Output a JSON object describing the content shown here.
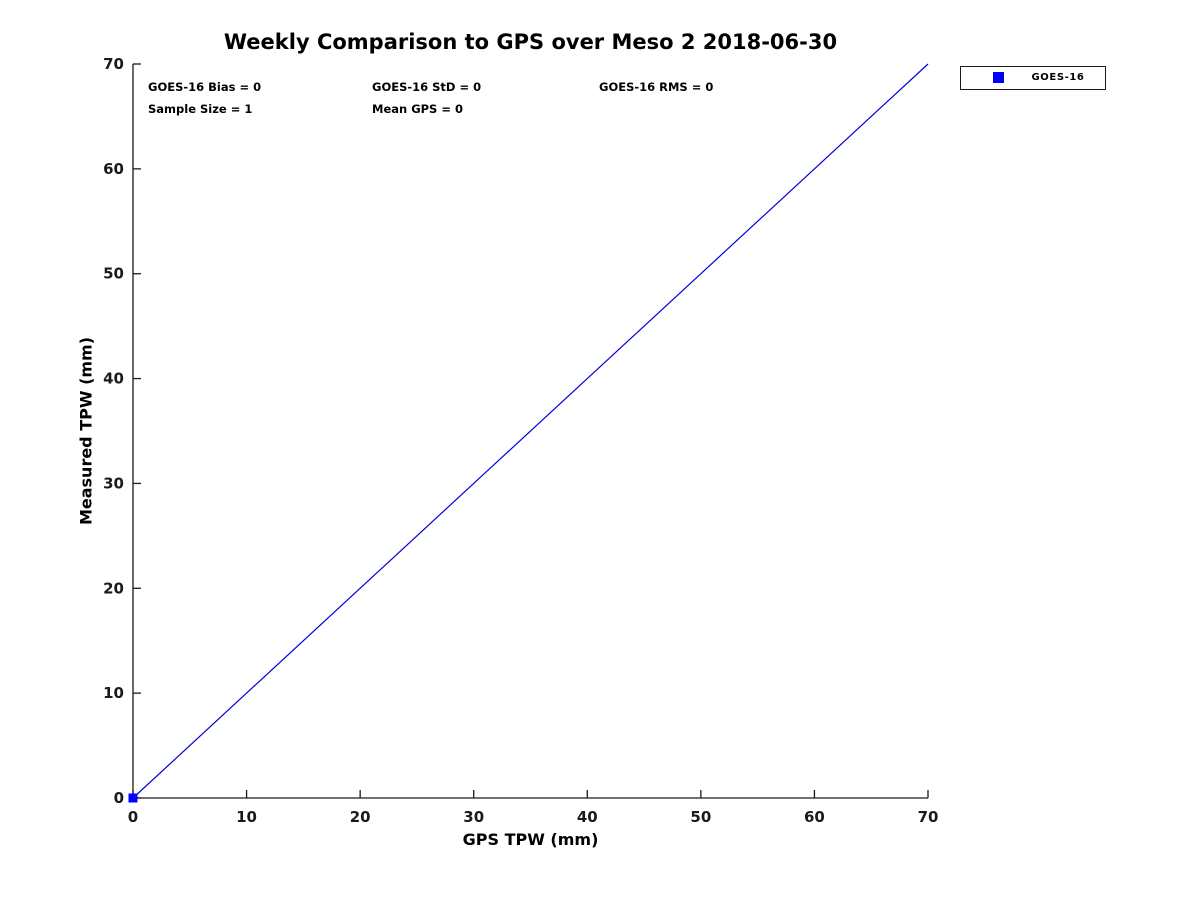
{
  "figure": {
    "background": "#ffffff"
  },
  "chart_data": {
    "type": "line",
    "title": "Weekly Comparison to GPS over Meso 2 2018-06-30",
    "xlabel": "GPS TPW (mm)",
    "ylabel": "Measured TPW (mm)",
    "xlim": [
      0,
      70
    ],
    "ylim": [
      0,
      70
    ],
    "xticks": [
      0,
      10,
      20,
      30,
      40,
      50,
      60,
      70
    ],
    "yticks": [
      0,
      10,
      20,
      30,
      40,
      50,
      60,
      70
    ],
    "grid": false,
    "axis_color": "#1a1a1a",
    "series": [
      {
        "name": "identity-line",
        "type": "line",
        "color": "#0000dd",
        "line_width": 1.2,
        "x": [
          0,
          70
        ],
        "y": [
          0,
          70
        ]
      },
      {
        "name": "GOES-16",
        "type": "scatter",
        "marker": "square",
        "color": "#0000ff",
        "marker_size": 9,
        "x": [
          0
        ],
        "y": [
          0
        ]
      }
    ],
    "legend": {
      "position": "upper-right-outside",
      "entries": [
        {
          "label": "GOES-16",
          "marker": "square",
          "color": "#0000ff"
        }
      ]
    },
    "annotations": {
      "bias": "GOES-16 Bias = 0",
      "std": "GOES-16 StD = 0",
      "rms": "GOES-16 RMS = 0",
      "sample_size": "Sample Size = 1",
      "mean_gps": "Mean GPS = 0"
    }
  }
}
